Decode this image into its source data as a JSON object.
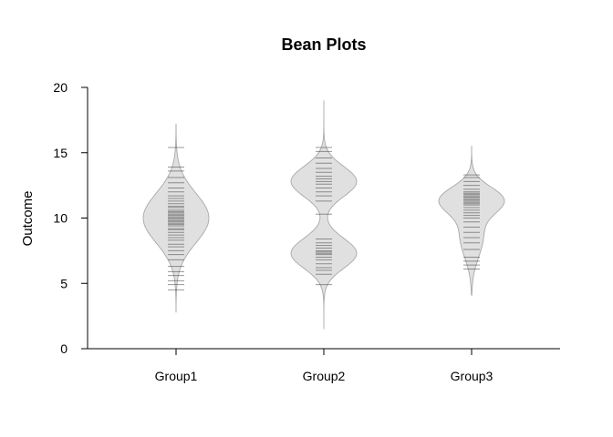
{
  "chart_data": {
    "type": "beanplot",
    "title": "Bean Plots",
    "xlabel": "",
    "ylabel": "Outcome",
    "ylim": [
      0,
      20
    ],
    "yticks": [
      0,
      5,
      10,
      15,
      20
    ],
    "categories": [
      "Group1",
      "Group2",
      "Group3"
    ],
    "beans": [
      {
        "category": "Group1",
        "range": [
          2.8,
          17.2
        ],
        "modes": [
          {
            "mean": 10.0,
            "sd": 1.9,
            "weight": 1.0
          }
        ],
        "points": [
          4.5,
          4.9,
          5.2,
          5.6,
          5.9,
          6.3,
          6.8,
          7.2,
          7.5,
          7.8,
          8.0,
          8.3,
          8.5,
          8.7,
          8.9,
          9.1,
          9.2,
          9.4,
          9.5,
          9.6,
          9.7,
          9.8,
          9.9,
          10.0,
          10.1,
          10.2,
          10.3,
          10.4,
          10.5,
          10.6,
          10.8,
          10.9,
          11.1,
          11.3,
          11.5,
          11.7,
          12.0,
          12.3,
          12.7,
          13.1,
          13.6,
          13.9,
          15.4
        ]
      },
      {
        "category": "Group2",
        "range": [
          1.5,
          19.0
        ],
        "modes": [
          {
            "mean": 7.3,
            "sd": 1.15,
            "weight": 0.5
          },
          {
            "mean": 12.8,
            "sd": 1.15,
            "weight": 0.5
          }
        ],
        "points": [
          4.9,
          5.7,
          6.0,
          6.2,
          6.5,
          6.8,
          7.0,
          7.2,
          7.3,
          7.4,
          7.5,
          7.7,
          7.9,
          8.1,
          8.4,
          10.3,
          11.3,
          11.7,
          12.0,
          12.3,
          12.6,
          12.8,
          13.0,
          13.2,
          13.5,
          13.8,
          14.2,
          14.6,
          15.1,
          15.4
        ]
      },
      {
        "category": "Group3",
        "range": [
          4.1,
          15.5
        ],
        "modes": [
          {
            "mean": 11.4,
            "sd": 1.0,
            "weight": 0.62
          },
          {
            "mean": 8.6,
            "sd": 1.6,
            "weight": 0.38
          }
        ],
        "points": [
          6.1,
          6.4,
          6.7,
          7.0,
          7.6,
          8.1,
          8.5,
          8.9,
          9.3,
          9.7,
          10.0,
          10.2,
          10.4,
          10.6,
          10.8,
          11.0,
          11.1,
          11.2,
          11.3,
          11.4,
          11.5,
          11.6,
          11.7,
          11.8,
          11.9,
          12.0,
          12.2,
          12.5,
          12.8,
          13.1,
          13.3
        ]
      }
    ],
    "colors": {
      "fill": "#e0e0e0",
      "outline": "#a8a8a8",
      "beanline": "#444444",
      "axis": "#000000"
    },
    "grid": false,
    "legend": "none"
  }
}
